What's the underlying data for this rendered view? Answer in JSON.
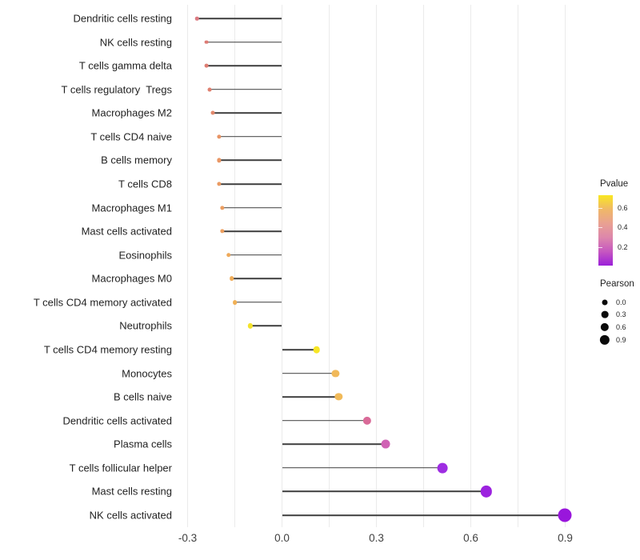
{
  "chart_data": {
    "type": "lollipop",
    "orientation": "horizontal",
    "value_name": "Pearson correlation",
    "x_ticks": [
      {
        "label": "-0.3",
        "value": -0.3
      },
      {
        "label": "0.0",
        "value": 0.0
      },
      {
        "label": "0.3",
        "value": 0.3
      },
      {
        "label": "0.6",
        "value": 0.6
      },
      {
        "label": "0.9",
        "value": 0.9
      }
    ],
    "grid_values": [
      -0.3,
      -0.15,
      0.0,
      0.15,
      0.3,
      0.45,
      0.6,
      0.75,
      0.9
    ],
    "xlim": [
      -0.33,
      0.97
    ],
    "baseline": 0.0,
    "points": [
      {
        "label": "Dendritic cells resting",
        "pearson": -0.27,
        "color": "#dc7b82"
      },
      {
        "label": "NK cells resting",
        "pearson": -0.24,
        "color": "#dd7b74"
      },
      {
        "label": "T cells gamma delta",
        "pearson": -0.24,
        "color": "#de7d72"
      },
      {
        "label": "T cells regulatory  Tregs",
        "pearson": -0.23,
        "color": "#df8070"
      },
      {
        "label": "Macrophages M2",
        "pearson": -0.22,
        "color": "#e2886c"
      },
      {
        "label": "T cells CD4 naive",
        "pearson": -0.2,
        "color": "#e89465"
      },
      {
        "label": "B cells memory",
        "pearson": -0.2,
        "color": "#e99766"
      },
      {
        "label": "T cells CD8",
        "pearson": -0.2,
        "color": "#ea9a62"
      },
      {
        "label": "Macrophages M1",
        "pearson": -0.19,
        "color": "#eb9d60"
      },
      {
        "label": "Mast cells activated",
        "pearson": -0.19,
        "color": "#ec9f5f"
      },
      {
        "label": "Eosinophils",
        "pearson": -0.17,
        "color": "#eea95a"
      },
      {
        "label": "Macrophages M0",
        "pearson": -0.16,
        "color": "#efac58"
      },
      {
        "label": "T cells CD4 memory activated",
        "pearson": -0.15,
        "color": "#f0b055"
      },
      {
        "label": "Neutrophils",
        "pearson": -0.1,
        "color": "#f4e32b"
      },
      {
        "label": "T cells CD4 memory resting",
        "pearson": 0.11,
        "color": "#f7e626"
      },
      {
        "label": "Monocytes",
        "pearson": 0.17,
        "color": "#f1b95a"
      },
      {
        "label": "B cells naive",
        "pearson": 0.18,
        "color": "#f1ba59"
      },
      {
        "label": "Dendritic cells activated",
        "pearson": 0.27,
        "color": "#d96a98"
      },
      {
        "label": "Plasma cells",
        "pearson": 0.33,
        "color": "#d062b4"
      },
      {
        "label": "T cells follicular helper",
        "pearson": 0.51,
        "color": "#9e2de2"
      },
      {
        "label": "Mast cells resting",
        "pearson": 0.65,
        "color": "#9c23df"
      },
      {
        "label": "NK cells activated",
        "pearson": 0.9,
        "color": "#9916dc"
      }
    ],
    "legend": {
      "pvalue": {
        "title": "Pvalue",
        "ticks": [
          "0.6",
          "0.4",
          "0.2"
        ],
        "gradient_bottom_to_top": [
          "#9b1fd9",
          "#c657c0",
          "#dd87ab",
          "#e9a192",
          "#f0b867",
          "#f9e721"
        ]
      },
      "pearson": {
        "title": "Pearson",
        "items": [
          "0.0",
          "0.3",
          "0.6",
          "0.9"
        ]
      }
    }
  }
}
